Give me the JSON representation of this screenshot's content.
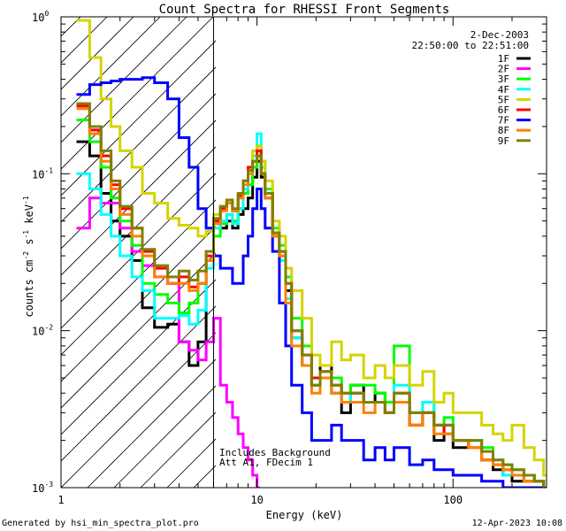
{
  "chart_data": {
    "type": "line",
    "title": "Count Spectra for RHESSI Front Segments",
    "xlabel": "Energy (keV)",
    "ylabel_parts": {
      "base": "counts cm",
      "exp1": "-2",
      "mid": " s",
      "exp2": "-1",
      "mid2": " keV",
      "exp3": "-1"
    },
    "x_scale": "log",
    "y_scale": "log",
    "xlim": [
      1,
      300
    ],
    "ylim": [
      0.001,
      1
    ],
    "x_ticks": [
      {
        "value": 1,
        "label": "1"
      },
      {
        "value": 10,
        "label": "10"
      },
      {
        "value": 100,
        "label": "100"
      }
    ],
    "y_ticks": [
      {
        "value": 1,
        "base": "10",
        "exp": "0"
      },
      {
        "value": 0.1,
        "base": "10",
        "exp": "-1"
      },
      {
        "value": 0.01,
        "base": "10",
        "exp": "-2"
      },
      {
        "value": 0.001,
        "base": "10",
        "exp": "-3"
      }
    ],
    "date": "2-Dec-2003",
    "time_range": "22:50:00 to 22:51:00",
    "legend_position": "top-right",
    "attenuator_marker_keV": 6,
    "notes": [
      "Includes Background",
      "Att A1, FDecim 1"
    ],
    "footer_left": "Generated by hsi_min_spectra_plot.pro",
    "footer_right": "12-Apr-2023 10:08",
    "series": [
      {
        "name": "1F",
        "color": "#000000",
        "x": [
          1.2,
          1.4,
          1.6,
          1.8,
          2.0,
          2.3,
          2.6,
          3.0,
          3.5,
          4.0,
          4.5,
          5.0,
          5.5,
          6,
          6.5,
          7,
          7.5,
          8,
          8.5,
          9,
          9.5,
          10,
          10.5,
          11,
          12,
          13,
          14,
          15,
          17,
          19,
          21,
          24,
          27,
          30,
          35,
          40,
          45,
          50,
          60,
          70,
          80,
          90,
          100,
          120,
          140,
          160,
          180,
          200,
          230,
          260,
          290
        ],
        "y": [
          0.16,
          0.13,
          0.075,
          0.05,
          0.04,
          0.028,
          0.014,
          0.0105,
          0.011,
          0.0085,
          0.006,
          0.0085,
          0.028,
          0.05,
          0.045,
          0.05,
          0.045,
          0.055,
          0.06,
          0.07,
          0.095,
          0.12,
          0.095,
          0.07,
          0.042,
          0.032,
          0.018,
          0.009,
          0.006,
          0.0045,
          0.006,
          0.004,
          0.003,
          0.0045,
          0.0035,
          0.004,
          0.003,
          0.0035,
          0.0025,
          0.003,
          0.002,
          0.0025,
          0.0018,
          0.002,
          0.0015,
          0.0013,
          0.0012,
          0.0011,
          0.0012,
          0.0011,
          0.001
        ]
      },
      {
        "name": "2F",
        "color": "#ff00ff",
        "x": [
          1.2,
          1.4,
          1.6,
          2.0,
          2.3,
          2.6,
          3.0,
          3.5,
          4.0,
          4.5,
          5.0,
          5.5,
          6,
          6.5,
          7,
          7.5,
          8,
          8.5,
          9,
          9.5,
          10
        ],
        "y": [
          0.045,
          0.07,
          0.065,
          0.045,
          0.032,
          0.026,
          0.022,
          0.02,
          0.0085,
          0.0075,
          0.0065,
          0.0085,
          0.012,
          0.0045,
          0.0035,
          0.0028,
          0.0022,
          0.0018,
          0.0015,
          0.0012,
          0.001
        ]
      },
      {
        "name": "3F",
        "color": "#00ff00",
        "x": [
          1.2,
          1.4,
          1.6,
          1.8,
          2.0,
          2.3,
          2.6,
          3.0,
          3.5,
          4.0,
          4.5,
          5.0,
          5.5,
          6,
          6.5,
          7,
          7.5,
          8,
          8.5,
          9,
          9.5,
          10,
          10.5,
          11,
          12,
          13,
          14,
          15,
          17,
          19,
          21,
          24,
          27,
          30,
          35,
          40,
          45,
          50,
          60,
          70,
          80,
          90,
          100,
          120,
          140,
          160,
          180,
          200,
          230,
          260,
          290
        ],
        "y": [
          0.22,
          0.16,
          0.11,
          0.07,
          0.05,
          0.035,
          0.02,
          0.017,
          0.015,
          0.013,
          0.015,
          0.02,
          0.028,
          0.04,
          0.048,
          0.055,
          0.05,
          0.06,
          0.075,
          0.085,
          0.11,
          0.15,
          0.12,
          0.08,
          0.045,
          0.035,
          0.022,
          0.012,
          0.008,
          0.0045,
          0.005,
          0.005,
          0.0035,
          0.0045,
          0.0045,
          0.004,
          0.0035,
          0.008,
          0.003,
          0.0035,
          0.0025,
          0.0028,
          0.002,
          0.002,
          0.0018,
          0.0015,
          0.0014,
          0.0013,
          0.0012,
          0.0011,
          0.001
        ]
      },
      {
        "name": "4F",
        "color": "#00ffff",
        "x": [
          1.2,
          1.4,
          1.6,
          1.8,
          2.0,
          2.3,
          2.6,
          3.0,
          3.5,
          4.0,
          4.5,
          5.0,
          5.5,
          6,
          6.5,
          7,
          7.5,
          8,
          8.5,
          9,
          9.5,
          10,
          10.5,
          11,
          12,
          13,
          14,
          15,
          17,
          19,
          21,
          24,
          27,
          30,
          35,
          40,
          45,
          50,
          60,
          70,
          80,
          90,
          100,
          120,
          140,
          160,
          180,
          200,
          230,
          260,
          290
        ],
        "y": [
          0.1,
          0.08,
          0.055,
          0.04,
          0.03,
          0.022,
          0.018,
          0.012,
          0.012,
          0.0125,
          0.011,
          0.0135,
          0.025,
          0.045,
          0.05,
          0.055,
          0.048,
          0.06,
          0.08,
          0.1,
          0.13,
          0.18,
          0.11,
          0.075,
          0.04,
          0.028,
          0.016,
          0.009,
          0.006,
          0.0045,
          0.005,
          0.004,
          0.0035,
          0.004,
          0.0035,
          0.0035,
          0.003,
          0.0045,
          0.003,
          0.0035,
          0.0025,
          0.0025,
          0.002,
          0.002,
          0.0015,
          0.0015,
          0.0012,
          0.0012,
          0.0011,
          0.0011,
          0.001
        ]
      },
      {
        "name": "5F",
        "color": "#d4d400",
        "x": [
          1.2,
          1.4,
          1.6,
          1.8,
          2.0,
          2.3,
          2.6,
          3.0,
          3.5,
          4.0,
          4.5,
          5.0,
          5.5,
          6,
          6.5,
          7,
          7.5,
          8,
          8.5,
          9,
          9.5,
          10,
          10.5,
          11,
          12,
          13,
          14,
          15,
          17,
          19,
          21,
          24,
          27,
          30,
          35,
          40,
          45,
          50,
          60,
          70,
          80,
          90,
          100,
          120,
          140,
          160,
          180,
          200,
          230,
          260,
          290
        ],
        "y": [
          0.95,
          0.55,
          0.3,
          0.2,
          0.14,
          0.11,
          0.075,
          0.065,
          0.052,
          0.047,
          0.045,
          0.04,
          0.043,
          0.055,
          0.06,
          0.065,
          0.058,
          0.07,
          0.09,
          0.11,
          0.14,
          0.15,
          0.12,
          0.09,
          0.05,
          0.04,
          0.025,
          0.018,
          0.012,
          0.007,
          0.006,
          0.0085,
          0.0065,
          0.007,
          0.005,
          0.006,
          0.005,
          0.006,
          0.0045,
          0.0055,
          0.0035,
          0.004,
          0.003,
          0.003,
          0.0025,
          0.0022,
          0.002,
          0.0025,
          0.0018,
          0.0015,
          0.0012
        ]
      },
      {
        "name": "6F",
        "color": "#ff0000",
        "x": [
          1.2,
          1.4,
          1.6,
          1.8,
          2.0,
          2.3,
          2.6,
          3.0,
          3.5,
          4.0,
          4.5,
          5.0,
          5.5,
          6,
          6.5,
          7,
          7.5,
          8,
          8.5,
          9,
          9.5,
          10,
          10.5,
          11,
          12,
          13,
          14,
          15,
          17,
          19,
          21,
          24,
          27,
          30,
          35,
          40,
          45,
          50,
          60,
          70,
          80,
          90,
          100,
          120,
          140,
          160,
          180,
          200,
          230,
          260,
          290
        ],
        "y": [
          0.27,
          0.19,
          0.13,
          0.085,
          0.06,
          0.045,
          0.032,
          0.025,
          0.02,
          0.022,
          0.019,
          0.02,
          0.03,
          0.05,
          0.06,
          0.065,
          0.058,
          0.072,
          0.09,
          0.11,
          0.12,
          0.14,
          0.1,
          0.075,
          0.04,
          0.03,
          0.02,
          0.01,
          0.007,
          0.005,
          0.0055,
          0.0045,
          0.004,
          0.004,
          0.0035,
          0.0035,
          0.003,
          0.004,
          0.0025,
          0.003,
          0.0025,
          0.0022,
          0.002,
          0.0018,
          0.0015,
          0.0014,
          0.0013,
          0.0012,
          0.0011,
          0.0011,
          0.001
        ]
      },
      {
        "name": "7F",
        "color": "#0000ff",
        "x": [
          1.2,
          1.4,
          1.6,
          1.8,
          2.0,
          2.3,
          2.6,
          3.0,
          3.5,
          4.0,
          4.5,
          5.0,
          5.5,
          6,
          6.5,
          7,
          7.5,
          8,
          8.5,
          9,
          9.5,
          10,
          10.5,
          11,
          12,
          13,
          14,
          15,
          17,
          19,
          21,
          24,
          27,
          30,
          35,
          40,
          45,
          50,
          60,
          70,
          80,
          90,
          100,
          120,
          140,
          160,
          180,
          200,
          230,
          260,
          290
        ],
        "y": [
          0.32,
          0.37,
          0.38,
          0.39,
          0.4,
          0.4,
          0.41,
          0.38,
          0.3,
          0.17,
          0.11,
          0.06,
          0.045,
          0.03,
          0.025,
          0.025,
          0.02,
          0.02,
          0.03,
          0.04,
          0.06,
          0.08,
          0.06,
          0.045,
          0.032,
          0.015,
          0.008,
          0.0045,
          0.003,
          0.002,
          0.002,
          0.0025,
          0.002,
          0.002,
          0.0015,
          0.0018,
          0.0015,
          0.0018,
          0.0014,
          0.0015,
          0.0013,
          0.0013,
          0.0012,
          0.0012,
          0.0011,
          0.0011,
          0.001,
          0.001,
          0.001,
          0.001,
          0.001
        ]
      },
      {
        "name": "8F",
        "color": "#ff8000",
        "x": [
          1.2,
          1.4,
          1.6,
          1.8,
          2.0,
          2.3,
          2.6,
          3.0,
          3.5,
          4.0,
          4.5,
          5.0,
          5.5,
          6,
          6.5,
          7,
          7.5,
          8,
          8.5,
          9,
          9.5,
          10,
          10.5,
          11,
          12,
          13,
          14,
          15,
          17,
          19,
          21,
          24,
          27,
          30,
          35,
          40,
          45,
          50,
          60,
          70,
          80,
          90,
          100,
          120,
          140,
          160,
          180,
          200,
          230,
          260,
          290
        ],
        "y": [
          0.26,
          0.18,
          0.12,
          0.08,
          0.055,
          0.04,
          0.03,
          0.022,
          0.02,
          0.02,
          0.018,
          0.02,
          0.028,
          0.048,
          0.058,
          0.065,
          0.058,
          0.07,
          0.085,
          0.1,
          0.12,
          0.13,
          0.1,
          0.07,
          0.04,
          0.03,
          0.015,
          0.008,
          0.006,
          0.004,
          0.005,
          0.004,
          0.0035,
          0.0035,
          0.003,
          0.0035,
          0.003,
          0.0035,
          0.0025,
          0.003,
          0.0022,
          0.0022,
          0.002,
          0.0018,
          0.0015,
          0.0014,
          0.0013,
          0.0012,
          0.0011,
          0.0011,
          0.001
        ]
      },
      {
        "name": "9F",
        "color": "#808000",
        "x": [
          1.2,
          1.4,
          1.6,
          1.8,
          2.0,
          2.3,
          2.6,
          3.0,
          3.5,
          4.0,
          4.5,
          5.0,
          5.5,
          6,
          6.5,
          7,
          7.5,
          8,
          8.5,
          9,
          9.5,
          10,
          10.5,
          11,
          12,
          13,
          14,
          15,
          17,
          19,
          21,
          24,
          27,
          30,
          35,
          40,
          45,
          50,
          60,
          70,
          80,
          90,
          100,
          120,
          140,
          160,
          180,
          200,
          230,
          260,
          290
        ],
        "y": [
          0.28,
          0.2,
          0.14,
          0.09,
          0.062,
          0.045,
          0.033,
          0.026,
          0.022,
          0.024,
          0.021,
          0.024,
          0.032,
          0.052,
          0.062,
          0.068,
          0.06,
          0.075,
          0.09,
          0.105,
          0.12,
          0.13,
          0.1,
          0.075,
          0.042,
          0.032,
          0.02,
          0.01,
          0.007,
          0.0045,
          0.0055,
          0.0045,
          0.004,
          0.004,
          0.0035,
          0.0035,
          0.003,
          0.004,
          0.003,
          0.003,
          0.0025,
          0.0025,
          0.002,
          0.002,
          0.0017,
          0.0015,
          0.0014,
          0.0013,
          0.0012,
          0.0011,
          0.001
        ]
      }
    ]
  }
}
